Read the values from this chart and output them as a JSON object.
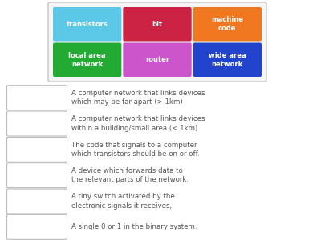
{
  "background_color": "#ffffff",
  "vocab_buttons": [
    {
      "label": "transistors",
      "color": "#5bc8e8",
      "row": 0,
      "col": 0
    },
    {
      "label": "bit",
      "color": "#cc2244",
      "row": 0,
      "col": 1
    },
    {
      "label": "machine\ncode",
      "color": "#f07820",
      "row": 0,
      "col": 2
    },
    {
      "label": "local area\nnetwork",
      "color": "#22aa33",
      "row": 1,
      "col": 0
    },
    {
      "label": "router",
      "color": "#cc55cc",
      "row": 1,
      "col": 1
    },
    {
      "label": "wide area\nnetwork",
      "color": "#2244cc",
      "row": 1,
      "col": 2
    }
  ],
  "definitions": [
    "A computer network that links devices\nwhich may be far apart (> 1km)",
    "A computer network that links devices\nwithin a building/small area (< 1km)",
    "The code that signals to a computer\nwhich transistors should be on or off.",
    "A device which forwards data to\nthe relevant parts of the network.",
    "A tiny switch activated by the\nelectronic signals it receives,",
    "A single 0 or 1 in the binary system."
  ],
  "box_border_color": "#bbbbbb",
  "box_fill_color": "#ffffff",
  "text_color": "#555555",
  "button_text_color": "#ffffff",
  "container_border_color": "#bbbbbb",
  "container_fill_color": "#f5f5f5",
  "button_fontsize": 6.0,
  "def_fontsize": 6.2
}
